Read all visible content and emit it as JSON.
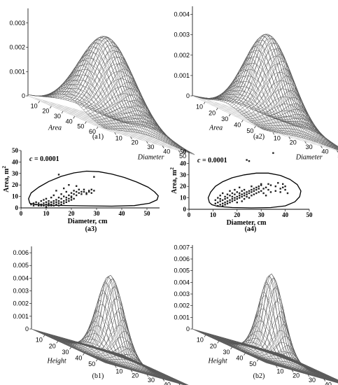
{
  "chart_data": [
    {
      "id": "a1",
      "type": "surface3d",
      "caption": "(a1)",
      "z_ticks": [
        "0",
        "0.001",
        "0.002",
        "0.003"
      ],
      "z_max": 0.0036,
      "x_label": "Area",
      "x_ticks": [
        "10",
        "20",
        "30",
        "40",
        "50",
        "60"
      ],
      "y_label": "Diameter",
      "y_ticks": [
        "50",
        "40",
        "30",
        "20",
        "10"
      ],
      "peak": {
        "area": 20,
        "diameter": 20
      }
    },
    {
      "id": "a2",
      "type": "surface3d",
      "caption": "(a2)",
      "z_ticks": [
        "0",
        "0.001",
        "0.002",
        "0.003",
        "0.004"
      ],
      "z_max": 0.0044,
      "x_label": "Area",
      "x_ticks": [
        "10",
        "20",
        "30",
        "40",
        "50"
      ],
      "y_label": "Diameter",
      "y_ticks": [
        "50",
        "40",
        "30",
        "20",
        "10"
      ],
      "peak": {
        "area": 20,
        "diameter": 25
      }
    },
    {
      "id": "a3",
      "type": "scatter",
      "caption": "(a3)",
      "annotation_var": "c",
      "annotation_value": " = 0.0001",
      "xlabel": "Diameter, cm",
      "ylabel": "Area, m",
      "ylabel_sup": "2",
      "xlim": [
        0,
        55
      ],
      "ylim": [
        0,
        50
      ],
      "x_ticks": [
        "0",
        "10",
        "20",
        "30",
        "40",
        "50"
      ],
      "y_ticks": [
        "0",
        "10",
        "20",
        "30",
        "40",
        "50"
      ],
      "contour": [
        [
          3.5,
          4
        ],
        [
          3,
          8
        ],
        [
          4,
          13
        ],
        [
          7,
          18
        ],
        [
          11,
          23
        ],
        [
          16,
          27.5
        ],
        [
          21,
          30.5
        ],
        [
          26,
          32
        ],
        [
          31,
          31.5
        ],
        [
          36,
          29.5
        ],
        [
          41,
          26.5
        ],
        [
          46,
          22.5
        ],
        [
          50.5,
          18
        ],
        [
          53,
          14
        ],
        [
          54.5,
          10.5
        ],
        [
          54,
          7
        ],
        [
          51,
          4
        ],
        [
          45,
          2
        ],
        [
          36,
          1.5
        ],
        [
          24,
          1.8
        ],
        [
          13,
          2.2
        ],
        [
          6,
          2.8
        ],
        [
          3.5,
          4
        ]
      ],
      "points": [
        [
          4,
          3
        ],
        [
          5,
          4
        ],
        [
          5,
          2
        ],
        [
          6,
          5
        ],
        [
          6,
          3
        ],
        [
          7,
          4
        ],
        [
          7,
          2
        ],
        [
          8,
          6
        ],
        [
          8,
          3
        ],
        [
          8,
          2
        ],
        [
          9,
          4
        ],
        [
          9,
          7
        ],
        [
          9,
          2
        ],
        [
          10,
          3
        ],
        [
          10,
          5
        ],
        [
          10,
          1
        ],
        [
          10,
          8
        ],
        [
          11,
          2
        ],
        [
          11,
          4
        ],
        [
          11,
          6
        ],
        [
          11,
          3
        ],
        [
          12,
          5
        ],
        [
          12,
          2
        ],
        [
          12,
          9
        ],
        [
          12,
          3
        ],
        [
          13,
          4
        ],
        [
          13,
          6
        ],
        [
          13,
          2
        ],
        [
          13,
          11
        ],
        [
          14,
          3
        ],
        [
          14,
          7
        ],
        [
          14,
          5
        ],
        [
          14,
          15
        ],
        [
          15,
          4
        ],
        [
          15,
          9
        ],
        [
          15,
          2
        ],
        [
          15,
          6
        ],
        [
          15,
          29
        ],
        [
          16,
          5
        ],
        [
          16,
          8
        ],
        [
          16,
          3
        ],
        [
          16,
          12
        ],
        [
          17,
          6
        ],
        [
          17,
          10
        ],
        [
          17,
          4
        ],
        [
          17,
          17
        ],
        [
          18,
          7
        ],
        [
          18,
          14
        ],
        [
          18,
          5
        ],
        [
          18,
          9
        ],
        [
          19,
          8
        ],
        [
          19,
          11
        ],
        [
          19,
          6
        ],
        [
          19,
          20
        ],
        [
          20,
          10
        ],
        [
          20,
          13
        ],
        [
          20,
          7
        ],
        [
          20,
          9
        ],
        [
          21,
          12
        ],
        [
          21,
          15
        ],
        [
          21,
          8
        ],
        [
          22,
          11
        ],
        [
          22,
          14
        ],
        [
          22,
          19
        ],
        [
          23,
          13
        ],
        [
          23,
          16
        ],
        [
          24,
          12
        ],
        [
          24,
          14
        ],
        [
          25,
          14
        ],
        [
          25,
          16
        ],
        [
          26,
          13
        ],
        [
          26,
          12
        ],
        [
          27,
          15
        ],
        [
          27,
          14
        ],
        [
          28,
          16
        ],
        [
          28,
          13
        ],
        [
          29,
          15
        ],
        [
          29,
          27
        ]
      ]
    },
    {
      "id": "a4",
      "type": "scatter",
      "caption": "(a4)",
      "annotation_var": "c",
      "annotation_value": " = 0.0001",
      "xlabel": "Diameter, cm",
      "ylabel": "Area, m",
      "ylabel_sup": "2",
      "xlim": [
        0,
        50
      ],
      "ylim": [
        0,
        50
      ],
      "x_ticks": [
        "0",
        "10",
        "20",
        "30",
        "40",
        "50"
      ],
      "y_ticks": [
        "0",
        "10",
        "20",
        "30",
        "40",
        "50"
      ],
      "contour": [
        [
          8.5,
          6
        ],
        [
          8,
          10
        ],
        [
          9,
          15
        ],
        [
          11,
          20
        ],
        [
          14,
          24
        ],
        [
          18,
          27.5
        ],
        [
          23,
          30
        ],
        [
          28,
          31.5
        ],
        [
          33,
          31.5
        ],
        [
          38,
          29.5
        ],
        [
          42,
          26
        ],
        [
          45,
          21.5
        ],
        [
          46.5,
          16
        ],
        [
          46,
          11
        ],
        [
          44,
          6.5
        ],
        [
          40,
          3
        ],
        [
          34,
          1.5
        ],
        [
          26,
          1.2
        ],
        [
          18,
          1.5
        ],
        [
          12,
          2.5
        ],
        [
          9.5,
          4
        ],
        [
          8.5,
          6
        ]
      ],
      "points": [
        [
          11,
          5
        ],
        [
          11,
          8
        ],
        [
          12,
          3
        ],
        [
          12,
          6
        ],
        [
          12,
          10
        ],
        [
          13,
          4
        ],
        [
          13,
          7
        ],
        [
          13,
          12
        ],
        [
          13,
          9
        ],
        [
          14,
          5
        ],
        [
          14,
          8
        ],
        [
          14,
          14
        ],
        [
          14,
          3
        ],
        [
          15,
          6
        ],
        [
          15,
          9
        ],
        [
          15,
          11
        ],
        [
          15,
          4
        ],
        [
          16,
          7
        ],
        [
          16,
          10
        ],
        [
          16,
          13
        ],
        [
          16,
          5
        ],
        [
          17,
          8
        ],
        [
          17,
          12
        ],
        [
          17,
          6
        ],
        [
          17,
          16
        ],
        [
          18,
          9
        ],
        [
          18,
          11
        ],
        [
          18,
          14
        ],
        [
          18,
          7
        ],
        [
          19,
          10
        ],
        [
          19,
          13
        ],
        [
          19,
          8
        ],
        [
          19,
          17
        ],
        [
          20,
          11
        ],
        [
          20,
          15
        ],
        [
          20,
          9
        ],
        [
          20,
          6
        ],
        [
          21,
          12
        ],
        [
          21,
          14
        ],
        [
          21,
          10
        ],
        [
          21,
          19
        ],
        [
          22,
          13
        ],
        [
          22,
          16
        ],
        [
          22,
          11
        ],
        [
          22,
          7
        ],
        [
          23,
          14
        ],
        [
          23,
          9
        ],
        [
          23,
          17
        ],
        [
          23,
          12
        ],
        [
          24,
          15
        ],
        [
          24,
          11
        ],
        [
          24,
          13
        ],
        [
          24,
          43
        ],
        [
          25,
          16
        ],
        [
          25,
          10
        ],
        [
          25,
          14
        ],
        [
          25,
          42
        ],
        [
          26,
          17
        ],
        [
          26,
          12
        ],
        [
          26,
          15
        ],
        [
          26,
          20
        ],
        [
          27,
          18
        ],
        [
          27,
          13
        ],
        [
          27,
          16
        ],
        [
          28,
          19
        ],
        [
          28,
          14
        ],
        [
          28,
          17
        ],
        [
          29,
          20
        ],
        [
          29,
          15
        ],
        [
          29,
          18
        ],
        [
          30,
          21
        ],
        [
          30,
          16
        ],
        [
          30,
          22
        ],
        [
          31,
          14
        ],
        [
          31,
          18
        ],
        [
          32,
          19
        ],
        [
          32,
          12
        ],
        [
          33,
          22
        ],
        [
          33,
          17
        ],
        [
          34,
          21
        ],
        [
          34,
          15
        ],
        [
          35,
          49
        ],
        [
          36,
          20
        ],
        [
          36,
          16
        ],
        [
          37,
          23
        ],
        [
          38,
          18
        ],
        [
          38,
          15
        ],
        [
          39,
          19
        ],
        [
          39,
          22
        ],
        [
          40,
          20
        ],
        [
          40,
          17
        ],
        [
          41,
          14
        ]
      ]
    },
    {
      "id": "b1",
      "type": "surface3d",
      "caption": "(b1)",
      "z_ticks": [
        "0",
        "0.001",
        "0.002",
        "0.003",
        "0.004",
        "0.005",
        "0.006"
      ],
      "z_max": 0.0065,
      "x_label": "Height",
      "x_ticks": [
        "10",
        "20",
        "30",
        "40",
        "50"
      ],
      "y_label": "Diameter",
      "y_ticks": [
        "50",
        "40",
        "30",
        "20",
        "10"
      ],
      "peak": {
        "height": 25,
        "diameter": 25
      }
    },
    {
      "id": "b2",
      "type": "surface3d",
      "caption": "(b2)",
      "z_ticks": [
        "0",
        "0.001",
        "0.002",
        "0.003",
        "0.004",
        "0.005",
        "0.006",
        "0.007"
      ],
      "z_max": 0.0072,
      "x_label": "Height",
      "x_ticks": [
        "10",
        "20",
        "30",
        "40",
        "50"
      ],
      "y_label": "Diameter",
      "y_ticks": [
        "50",
        "40",
        "30",
        "20",
        "10"
      ],
      "peak": {
        "height": 25,
        "diameter": 25
      }
    }
  ]
}
